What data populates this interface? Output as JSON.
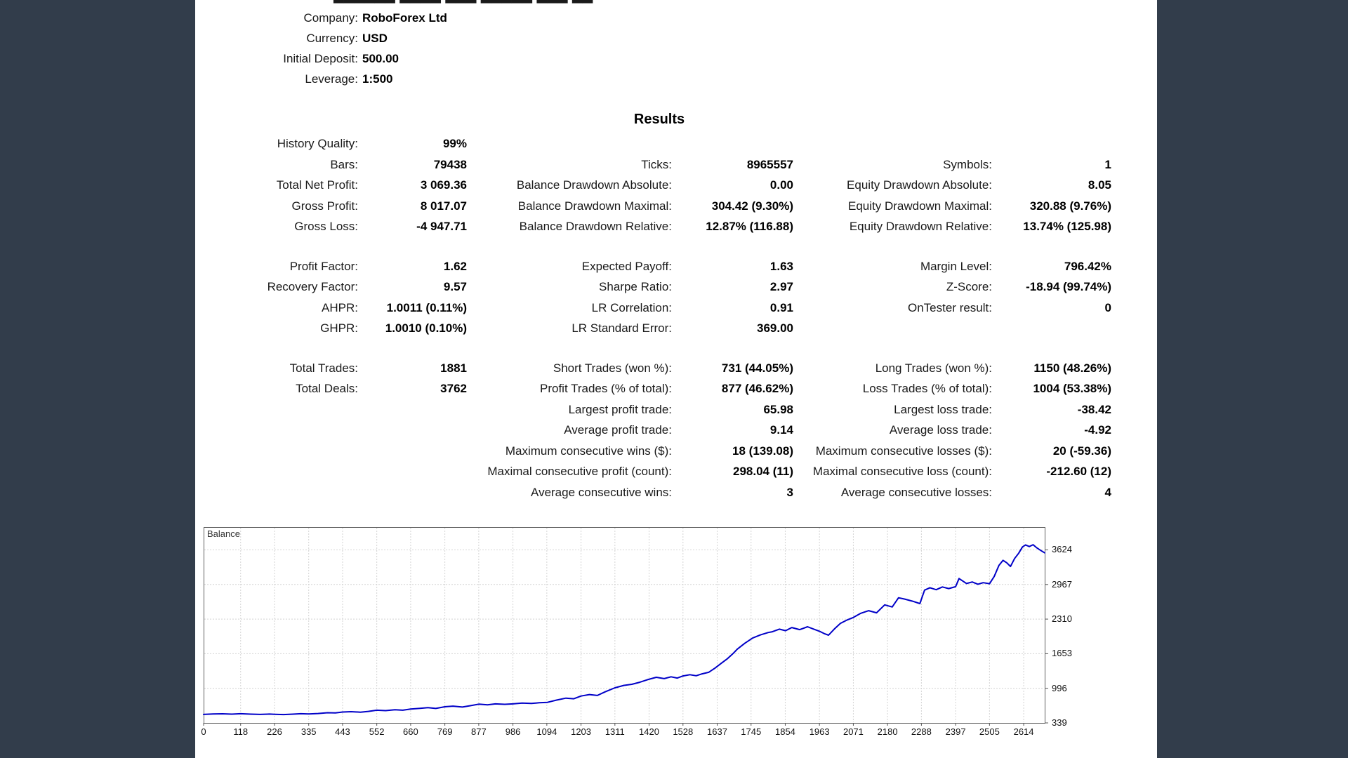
{
  "page": {
    "background_color": "#323d4b",
    "paper_color": "#ffffff",
    "accent_curve_color": "#0000c8"
  },
  "header": {
    "clipped_text": "██████ ████ ███ █████ ███ ██",
    "rows": [
      {
        "label": "Company:",
        "value": "RoboForex Ltd"
      },
      {
        "label": "Currency:",
        "value": "USD"
      },
      {
        "label": "Initial Deposit:",
        "value": "500.00"
      },
      {
        "label": "Leverage:",
        "value": "1:500"
      }
    ]
  },
  "results": {
    "title": "Results",
    "rows": [
      [
        "History Quality:",
        "99%",
        "",
        "",
        "",
        ""
      ],
      [
        "Bars:",
        "79438",
        "Ticks:",
        "8965557",
        "Symbols:",
        "1"
      ],
      [
        "Total Net Profit:",
        "3 069.36",
        "Balance Drawdown Absolute:",
        "0.00",
        "Equity Drawdown Absolute:",
        "8.05"
      ],
      [
        "Gross Profit:",
        "8 017.07",
        "Balance Drawdown Maximal:",
        "304.42 (9.30%)",
        "Equity Drawdown Maximal:",
        "320.88 (9.76%)"
      ],
      [
        "Gross Loss:",
        "-4 947.71",
        "Balance Drawdown Relative:",
        "12.87% (116.88)",
        "Equity Drawdown Relative:",
        "13.74% (125.98)"
      ],
      "spacer",
      [
        "Profit Factor:",
        "1.62",
        "Expected Payoff:",
        "1.63",
        "Margin Level:",
        "796.42%"
      ],
      [
        "Recovery Factor:",
        "9.57",
        "Sharpe Ratio:",
        "2.97",
        "Z-Score:",
        "-18.94 (99.74%)"
      ],
      [
        "AHPR:",
        "1.0011 (0.11%)",
        "LR Correlation:",
        "0.91",
        "OnTester result:",
        "0"
      ],
      [
        "GHPR:",
        "1.0010 (0.10%)",
        "LR Standard Error:",
        "369.00",
        "",
        ""
      ],
      "spacer",
      [
        "Total Trades:",
        "1881",
        "Short Trades (won %):",
        "731 (44.05%)",
        "Long Trades (won %):",
        "1150 (48.26%)"
      ],
      [
        "Total Deals:",
        "3762",
        "Profit Trades (% of total):",
        "877 (46.62%)",
        "Loss Trades (% of total):",
        "1004 (53.38%)"
      ],
      [
        "",
        "",
        "Largest profit trade:",
        "65.98",
        "Largest loss trade:",
        "-38.42"
      ],
      [
        "",
        "",
        "Average profit trade:",
        "9.14",
        "Average loss trade:",
        "-4.92"
      ],
      [
        "",
        "",
        "Maximum consecutive wins ($):",
        "18 (139.08)",
        "Maximum consecutive losses ($):",
        "20 (-59.36)"
      ],
      [
        "",
        "",
        "Maximal consecutive profit (count):",
        "298.04 (11)",
        "Maximal consecutive loss (count):",
        "-212.60 (12)"
      ],
      [
        "",
        "",
        "Average consecutive wins:",
        "3",
        "Average consecutive losses:",
        "4"
      ]
    ]
  },
  "chart_data": {
    "type": "line",
    "title": "Balance",
    "xlabel": "",
    "ylabel": "",
    "x_ticks": [
      0,
      118,
      226,
      335,
      443,
      552,
      660,
      769,
      877,
      986,
      1094,
      1203,
      1311,
      1420,
      1528,
      1637,
      1745,
      1854,
      1963,
      2071,
      2180,
      2288,
      2397,
      2505,
      2614
    ],
    "y_ticks": [
      339,
      996,
      1653,
      2310,
      2967,
      3624
    ],
    "x_range": [
      0,
      2681
    ],
    "y_range": [
      339,
      4057
    ],
    "grid": "dashed",
    "legend_position": "top-left-inside",
    "series": [
      {
        "name": "Balance",
        "color": "#0000c8",
        "points": [
          [
            0,
            500
          ],
          [
            30,
            508
          ],
          [
            60,
            512
          ],
          [
            90,
            505
          ],
          [
            118,
            514
          ],
          [
            150,
            506
          ],
          [
            180,
            500
          ],
          [
            210,
            507
          ],
          [
            226,
            503
          ],
          [
            255,
            497
          ],
          [
            285,
            505
          ],
          [
            310,
            514
          ],
          [
            335,
            510
          ],
          [
            365,
            518
          ],
          [
            395,
            532
          ],
          [
            420,
            528
          ],
          [
            443,
            545
          ],
          [
            470,
            552
          ],
          [
            500,
            543
          ],
          [
            525,
            558
          ],
          [
            552,
            580
          ],
          [
            580,
            572
          ],
          [
            610,
            588
          ],
          [
            635,
            580
          ],
          [
            660,
            603
          ],
          [
            690,
            615
          ],
          [
            715,
            628
          ],
          [
            740,
            614
          ],
          [
            769,
            645
          ],
          [
            795,
            658
          ],
          [
            825,
            640
          ],
          [
            850,
            665
          ],
          [
            877,
            695
          ],
          [
            905,
            682
          ],
          [
            930,
            700
          ],
          [
            960,
            692
          ],
          [
            986,
            700
          ],
          [
            1015,
            716
          ],
          [
            1045,
            708
          ],
          [
            1070,
            722
          ],
          [
            1096,
            730
          ],
          [
            1125,
            772
          ],
          [
            1155,
            810
          ],
          [
            1180,
            798
          ],
          [
            1203,
            850
          ],
          [
            1230,
            878
          ],
          [
            1255,
            860
          ],
          [
            1280,
            930
          ],
          [
            1311,
            1005
          ],
          [
            1340,
            1052
          ],
          [
            1365,
            1072
          ],
          [
            1390,
            1110
          ],
          [
            1415,
            1160
          ],
          [
            1443,
            1205
          ],
          [
            1468,
            1180
          ],
          [
            1490,
            1215
          ],
          [
            1510,
            1190
          ],
          [
            1528,
            1230
          ],
          [
            1550,
            1255
          ],
          [
            1570,
            1235
          ],
          [
            1589,
            1270
          ],
          [
            1610,
            1300
          ],
          [
            1630,
            1380
          ],
          [
            1650,
            1470
          ],
          [
            1670,
            1560
          ],
          [
            1690,
            1670
          ],
          [
            1701,
            1740
          ],
          [
            1725,
            1850
          ],
          [
            1750,
            1950
          ],
          [
            1775,
            2010
          ],
          [
            1800,
            2055
          ],
          [
            1813,
            2070
          ],
          [
            1835,
            2120
          ],
          [
            1855,
            2090
          ],
          [
            1875,
            2150
          ],
          [
            1900,
            2110
          ],
          [
            1925,
            2165
          ],
          [
            1945,
            2120
          ],
          [
            1963,
            2080
          ],
          [
            1980,
            2030
          ],
          [
            1992,
            2005
          ],
          [
            2010,
            2120
          ],
          [
            2030,
            2230
          ],
          [
            2050,
            2290
          ],
          [
            2071,
            2340
          ],
          [
            2095,
            2420
          ],
          [
            2120,
            2470
          ],
          [
            2145,
            2430
          ],
          [
            2171,
            2580
          ],
          [
            2195,
            2540
          ],
          [
            2215,
            2715
          ],
          [
            2235,
            2690
          ],
          [
            2260,
            2650
          ],
          [
            2283,
            2604
          ],
          [
            2298,
            2860
          ],
          [
            2315,
            2905
          ],
          [
            2335,
            2868
          ],
          [
            2355,
            2920
          ],
          [
            2375,
            2890
          ],
          [
            2397,
            2925
          ],
          [
            2408,
            3080
          ],
          [
            2418,
            3040
          ],
          [
            2432,
            2985
          ],
          [
            2450,
            3015
          ],
          [
            2468,
            2972
          ],
          [
            2485,
            3002
          ],
          [
            2505,
            2982
          ],
          [
            2520,
            3120
          ],
          [
            2535,
            3330
          ],
          [
            2548,
            3425
          ],
          [
            2560,
            3380
          ],
          [
            2572,
            3310
          ],
          [
            2585,
            3460
          ],
          [
            2598,
            3560
          ],
          [
            2610,
            3680
          ],
          [
            2620,
            3718
          ],
          [
            2632,
            3688
          ],
          [
            2644,
            3722
          ],
          [
            2656,
            3662
          ],
          [
            2668,
            3615
          ],
          [
            2681,
            3568
          ]
        ]
      }
    ]
  }
}
